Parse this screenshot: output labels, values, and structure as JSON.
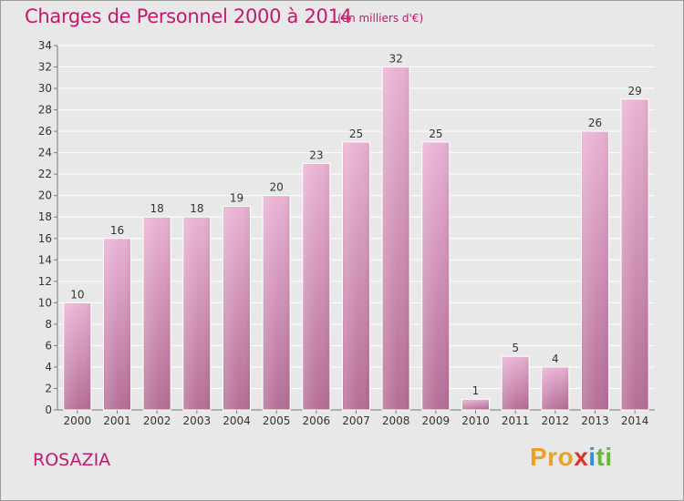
{
  "header": {
    "title": "Charges de Personnel 2000 à 2014",
    "subtitle": "(en milliers d'€)"
  },
  "footer": {
    "commune": "ROSAZIA",
    "brand": "Proxiti",
    "brand_parts": [
      "Pro",
      "x",
      "i",
      "ti"
    ]
  },
  "colors": {
    "title": "#c01a6c",
    "bar_top": "#e9b2d4",
    "bar_bottom": "#b56e97",
    "grid": "#ffffff",
    "background": "#e8e8e8"
  },
  "chart_data": {
    "type": "bar",
    "title": "Charges de Personnel 2000 à 2014",
    "subtitle": "(en milliers d'€)",
    "categories": [
      "2000",
      "2001",
      "2002",
      "2003",
      "2004",
      "2005",
      "2006",
      "2007",
      "2008",
      "2009",
      "2010",
      "2011",
      "2012",
      "2013",
      "2014"
    ],
    "values": [
      10,
      16,
      18,
      18,
      19,
      20,
      23,
      25,
      32,
      25,
      1,
      5,
      4,
      26,
      29
    ],
    "ylim": [
      0,
      34
    ],
    "yticks": [
      0,
      2,
      4,
      6,
      8,
      10,
      12,
      14,
      16,
      18,
      20,
      22,
      24,
      26,
      28,
      30,
      32,
      34
    ],
    "grid": true,
    "data_labels": true
  }
}
